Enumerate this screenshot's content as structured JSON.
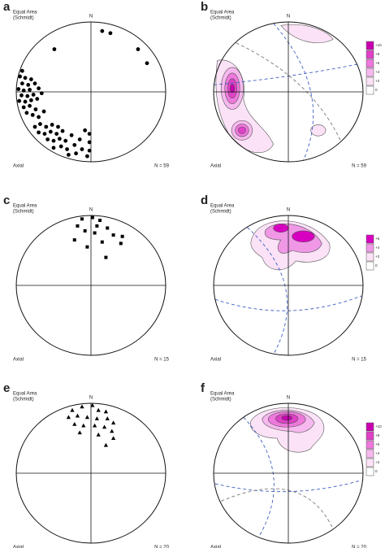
{
  "chart_data": [
    {
      "type": "scatter",
      "panel": "a",
      "title": "Equal Area",
      "subtitle": "(Schmidt)",
      "north": "N",
      "note": "Axial",
      "n_label": "N = 59",
      "marker": "circle",
      "color": "#000000",
      "xlim": [
        -1,
        1
      ],
      "ylim": [
        -1,
        1
      ],
      "x": [
        0.15,
        0.26,
        0.63,
        0.75,
        -0.49,
        -0.95,
        -0.88,
        -0.8,
        -0.92,
        -0.84,
        -0.75,
        -0.97,
        -0.9,
        -0.82,
        -0.7,
        -0.93,
        -0.85,
        -0.77,
        -0.66,
        -0.96,
        -0.88,
        -0.8,
        -0.72,
        -0.9,
        -0.82,
        -0.74,
        -0.86,
        -0.78,
        -0.7,
        -0.92,
        -0.63,
        -0.75,
        -0.68,
        -0.6,
        -0.52,
        -0.44,
        -0.7,
        -0.62,
        -0.54,
        -0.46,
        -0.38,
        -0.58,
        -0.5,
        -0.42,
        -0.34,
        -0.26,
        -0.5,
        -0.4,
        -0.32,
        -0.22,
        -0.15,
        -0.3,
        -0.2,
        -0.12,
        -0.05,
        -0.02,
        -0.02,
        -0.02,
        -0.08
      ],
      "values": [
        0.87,
        0.84,
        0.61,
        0.41,
        0.61,
        0.22,
        0.2,
        0.18,
        0.12,
        0.1,
        0.12,
        0.04,
        0.02,
        0.03,
        0.05,
        -0.05,
        -0.06,
        -0.04,
        -0.02,
        -0.13,
        -0.14,
        -0.12,
        -0.1,
        -0.22,
        -0.2,
        -0.25,
        -0.3,
        -0.33,
        -0.36,
        0.3,
        -0.28,
        -0.5,
        -0.46,
        -0.5,
        -0.47,
        -0.5,
        -0.58,
        -0.6,
        -0.57,
        -0.6,
        -0.56,
        -0.68,
        -0.7,
        -0.67,
        -0.7,
        -0.62,
        -0.8,
        -0.78,
        -0.82,
        -0.76,
        -0.68,
        -0.9,
        -0.88,
        -0.82,
        -0.92,
        -0.6,
        -0.72,
        -0.84,
        -0.55
      ]
    },
    {
      "type": "contour",
      "panel": "b",
      "title": "Equal Area",
      "subtitle": "(Schmidt)",
      "north": "N",
      "note": "Axial",
      "n_label": "N = 59",
      "levels": [
        "+10",
        "+8",
        "+6",
        "+4",
        "+2",
        "0"
      ],
      "colors": [
        "#c800b0",
        "#e040c8",
        "#ee78dc",
        "#f6b8ee",
        "#fbe2f7",
        "#ffffff"
      ]
    },
    {
      "type": "scatter",
      "panel": "c",
      "title": "Equal Area",
      "subtitle": "(Schmidt)",
      "north": "N",
      "note": "Axial",
      "n_label": "N = 15",
      "marker": "square",
      "color": "#000000",
      "xlim": [
        -1,
        1
      ],
      "ylim": [
        -1,
        1
      ],
      "x": [
        -0.12,
        0.02,
        0.12,
        -0.18,
        0.08,
        0.22,
        -0.08,
        0.05,
        0.3,
        0.42,
        -0.22,
        0.15,
        0.4,
        -0.05,
        0.2
      ],
      "values": [
        0.95,
        0.97,
        0.93,
        0.85,
        0.85,
        0.82,
        0.78,
        0.75,
        0.72,
        0.7,
        0.65,
        0.62,
        0.6,
        0.55,
        0.4
      ]
    },
    {
      "type": "contour",
      "panel": "d",
      "title": "Equal Area",
      "subtitle": "(Schmidt)",
      "north": "N",
      "note": "Axial",
      "n_label": "N = 15",
      "levels": [
        "+6",
        "+4",
        "+2",
        "0"
      ],
      "colors": [
        "#d800c0",
        "#f098e6",
        "#fbe2f7",
        "#ffffff"
      ]
    },
    {
      "type": "scatter",
      "panel": "e",
      "title": "Equal Area",
      "subtitle": "(Schmidt)",
      "north": "N",
      "note": "Axial",
      "n_label": "N = 20",
      "marker": "triangle",
      "color": "#000000",
      "xlim": [
        -1,
        1
      ],
      "ylim": [
        -1,
        1
      ],
      "x": [
        -0.25,
        -0.12,
        0.02,
        0.1,
        0.2,
        -0.3,
        -0.18,
        -0.05,
        0.08,
        0.22,
        0.3,
        -0.22,
        -0.1,
        0.05,
        0.18,
        0.28,
        -0.15,
        0.1,
        0.3,
        0.2
      ],
      "values": [
        0.9,
        0.95,
        0.97,
        0.9,
        0.88,
        0.8,
        0.82,
        0.8,
        0.78,
        0.78,
        0.72,
        0.7,
        0.68,
        0.68,
        0.66,
        0.6,
        0.58,
        0.55,
        0.5,
        0.4
      ]
    },
    {
      "type": "contour",
      "panel": "f",
      "title": "Equal Area",
      "subtitle": "(Schmidt)",
      "north": "N",
      "note": "Axial",
      "n_label": "N = 20",
      "levels": [
        "+10",
        "+8",
        "+6",
        "+4",
        "+2",
        "0"
      ],
      "colors": [
        "#c800b0",
        "#e040c8",
        "#ee78dc",
        "#f6b8ee",
        "#fbe2f7",
        "#ffffff"
      ]
    }
  ]
}
